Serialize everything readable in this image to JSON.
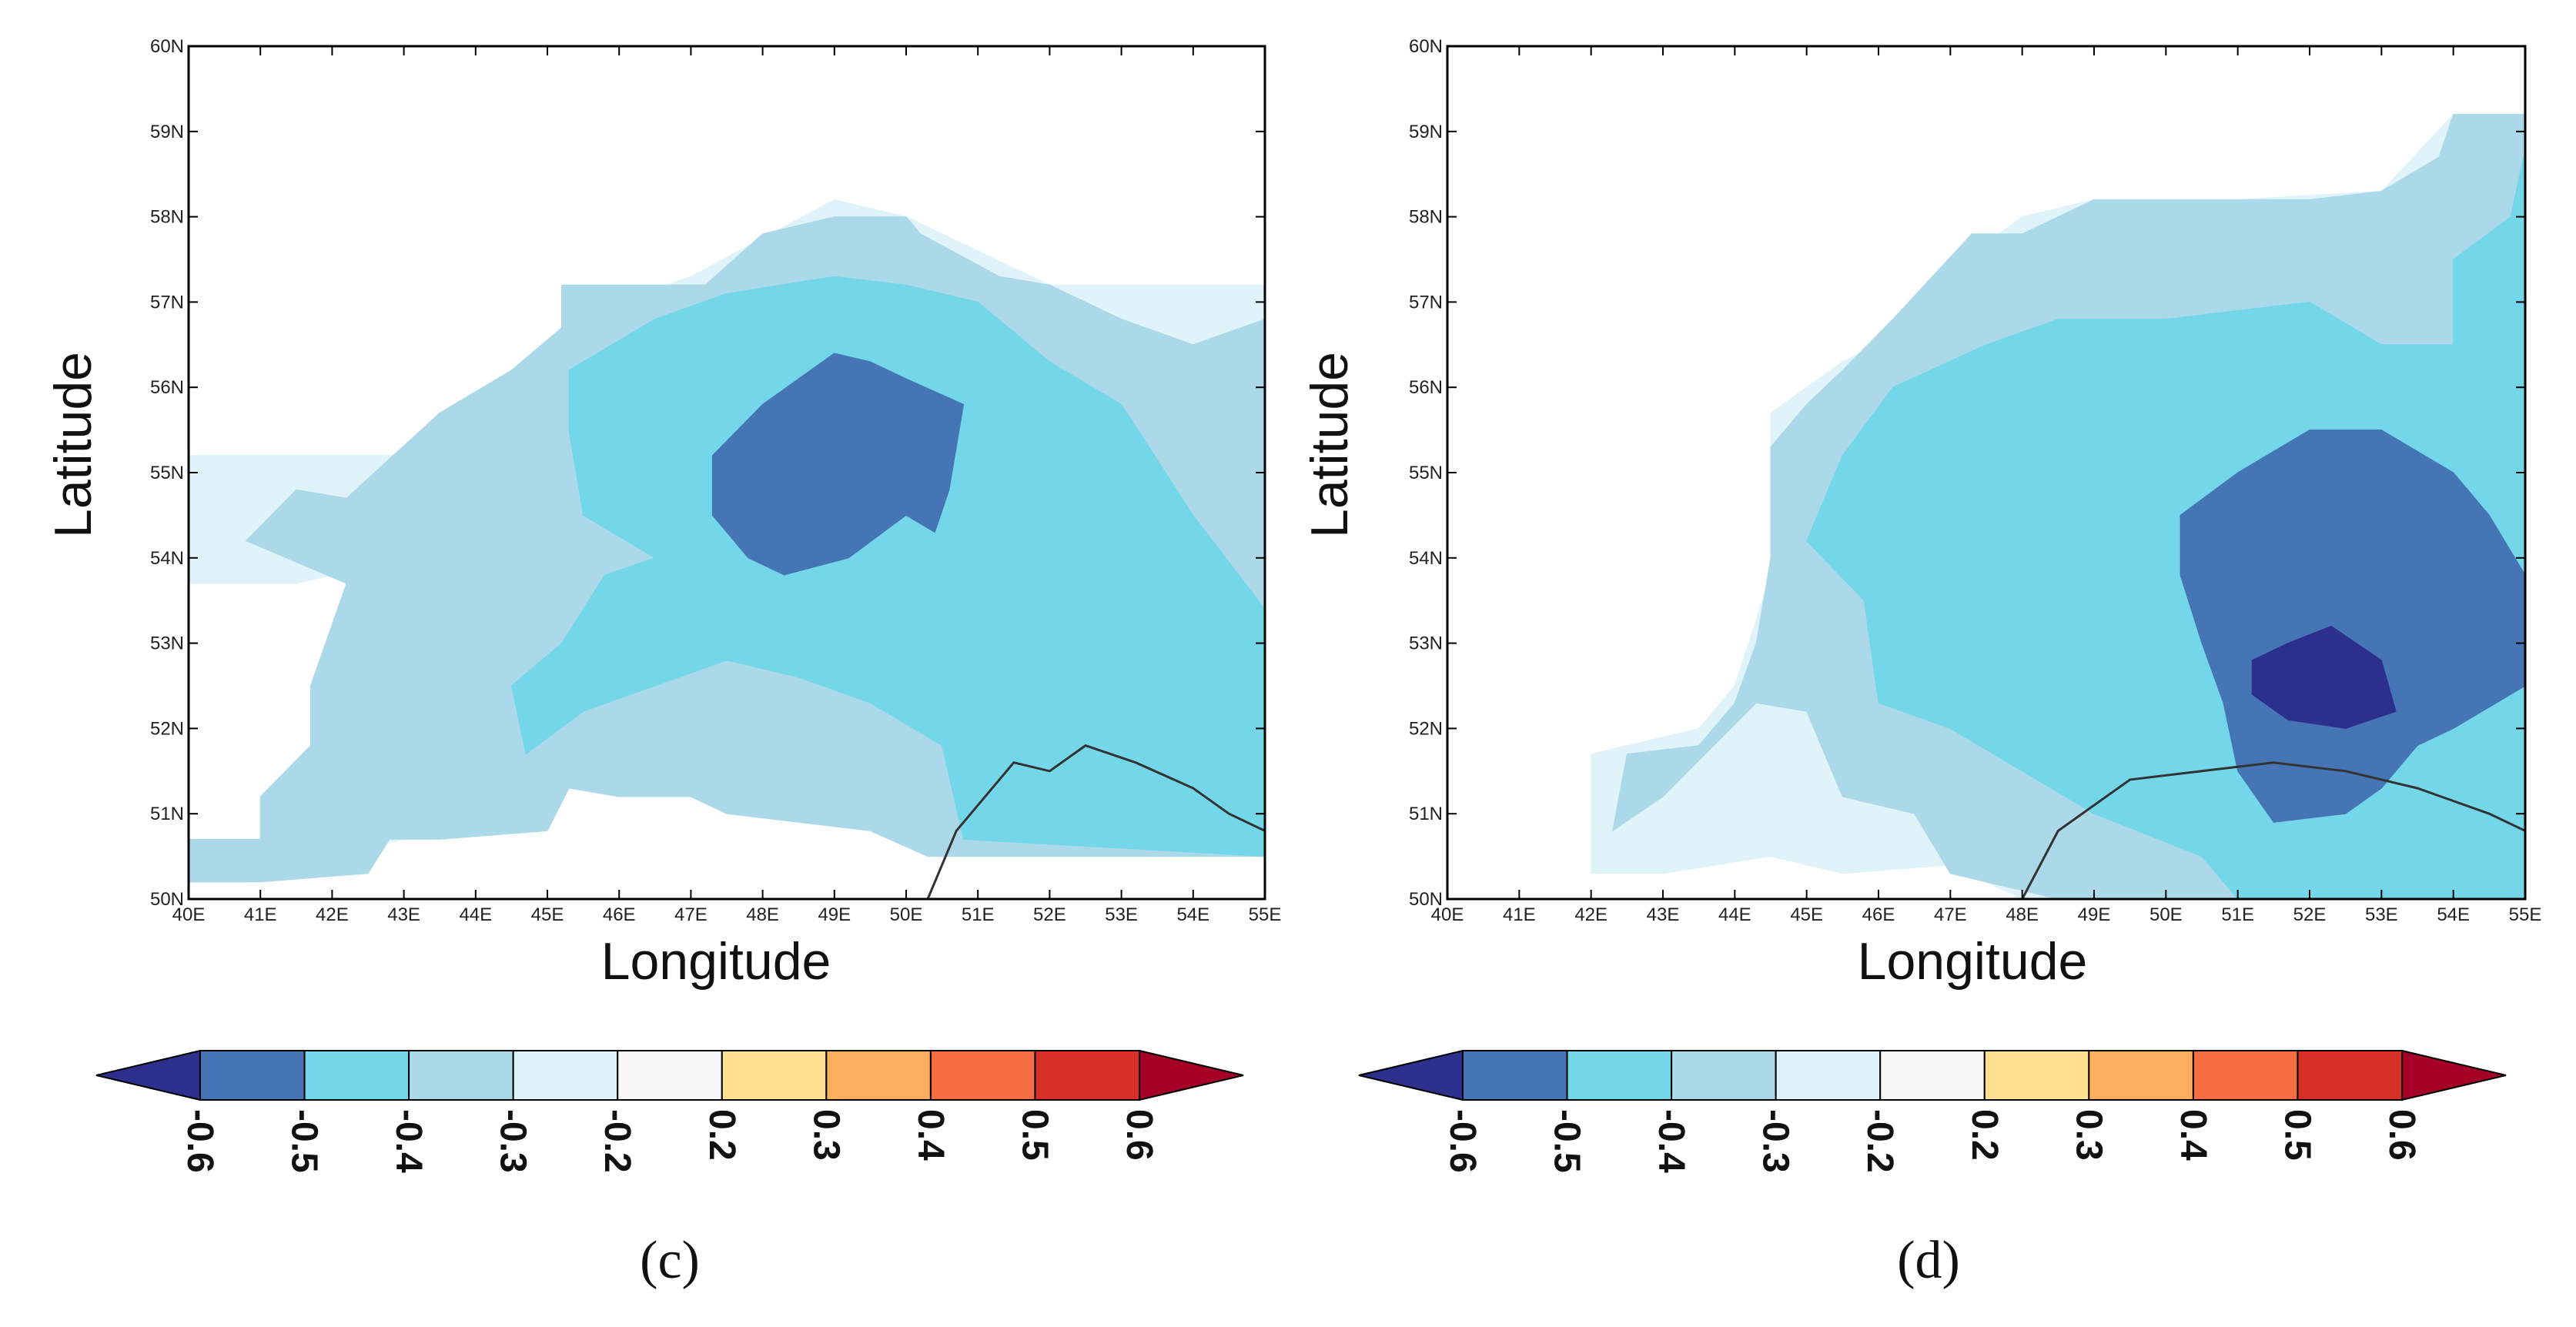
{
  "colors": {
    "lt_-0.6": "#2c2f8c",
    "-0.6_-0.5": "#4575b4",
    "-0.5_-0.4": "#74d7e9",
    "-0.4_-0.3": "#abd9e9",
    "-0.3_-0.2": "#e0f3f8",
    "-0.2_0.2": "#f7f7f7",
    "0.2_0.3": "#fee090",
    "0.3_0.4": "#fdae61",
    "0.4_0.5": "#f46d43",
    "0.5_0.6": "#d73027",
    "gt_0.6": "#a50026",
    "border": "#333333"
  },
  "chart_data": [
    {
      "type": "heatmap",
      "panel_label": "(c)",
      "xlabel": "Longitude",
      "ylabel": "Latitude",
      "xlim": [
        40,
        55
      ],
      "ylim": [
        50,
        60
      ],
      "xticks": [
        "40E",
        "41E",
        "42E",
        "43E",
        "44E",
        "45E",
        "46E",
        "47E",
        "48E",
        "49E",
        "50E",
        "51E",
        "52E",
        "53E",
        "54E",
        "55E"
      ],
      "yticks": [
        "50N",
        "51N",
        "52N",
        "53N",
        "54N",
        "55N",
        "56N",
        "57N",
        "58N",
        "59N",
        "60N"
      ],
      "colorbar": {
        "levels": [
          "-0.6",
          "-0.5",
          "-0.4",
          "-0.3",
          "-0.2",
          "0.2",
          "0.3",
          "0.4",
          "0.5",
          "0.6"
        ],
        "extend": "both"
      },
      "regions": [
        {
          "class": "-0.3_-0.2",
          "points": [
            [
              40,
              50.7
            ],
            [
              41,
              50.7
            ],
            [
              41.2,
              51.2
            ],
            [
              41.7,
              51.8
            ],
            [
              41.7,
              52.5
            ],
            [
              42.5,
              53.8
            ],
            [
              44.5,
              55.7
            ],
            [
              45.5,
              56.4
            ],
            [
              46,
              57
            ],
            [
              47,
              57.3
            ],
            [
              49,
              58.2
            ],
            [
              50,
              58
            ],
            [
              51,
              57.6
            ],
            [
              52,
              57.2
            ],
            [
              55,
              57.2
            ],
            [
              55,
              50.5
            ],
            [
              50.5,
              50.5
            ],
            [
              49,
              51
            ],
            [
              47,
              51.3
            ],
            [
              45,
              51.3
            ],
            [
              43,
              50.7
            ],
            [
              42,
              50.5
            ],
            [
              40.8,
              50.2
            ],
            [
              40,
              50.2
            ]
          ]
        },
        {
          "class": "-0.3_-0.2",
          "points": [
            [
              40,
              53.7
            ],
            [
              40,
              55.2
            ],
            [
              42,
              55.2
            ],
            [
              43,
              55.2
            ],
            [
              42,
              53.8
            ],
            [
              41.5,
              53.7
            ]
          ]
        },
        {
          "class": "-0.4_-0.3",
          "points": [
            [
              40,
              50.7
            ],
            [
              41,
              50.7
            ],
            [
              41,
              51.2
            ],
            [
              41.7,
              51.8
            ],
            [
              41.7,
              52.5
            ],
            [
              42.2,
              53.7
            ],
            [
              40.8,
              54.2
            ],
            [
              41.5,
              54.8
            ],
            [
              42.2,
              54.7
            ],
            [
              43.5,
              55.7
            ],
            [
              44.5,
              56.2
            ],
            [
              45.2,
              56.7
            ],
            [
              45.2,
              57.2
            ],
            [
              46,
              57.2
            ],
            [
              47.2,
              57.2
            ],
            [
              48,
              57.8
            ],
            [
              49,
              58
            ],
            [
              50,
              58
            ],
            [
              50.2,
              57.8
            ],
            [
              51.3,
              57.3
            ],
            [
              52,
              57.2
            ],
            [
              53,
              56.8
            ],
            [
              54,
              56.5
            ],
            [
              55,
              56.8
            ],
            [
              55,
              50.5
            ],
            [
              50.3,
              50.5
            ],
            [
              49.5,
              50.8
            ],
            [
              47.5,
              51
            ],
            [
              47,
              51.2
            ],
            [
              46,
              51.2
            ],
            [
              45.3,
              51.3
            ],
            [
              45,
              50.8
            ],
            [
              43.5,
              50.7
            ],
            [
              42.8,
              50.7
            ],
            [
              42.5,
              50.3
            ],
            [
              41,
              50.2
            ],
            [
              40,
              50.2
            ]
          ]
        },
        {
          "class": "-0.5_-0.4",
          "points": [
            [
              45.3,
              56.2
            ],
            [
              46.5,
              56.8
            ],
            [
              47.5,
              57.1
            ],
            [
              49,
              57.3
            ],
            [
              50,
              57.2
            ],
            [
              51,
              57
            ],
            [
              52,
              56.3
            ],
            [
              53,
              55.8
            ],
            [
              54,
              54.5
            ],
            [
              55,
              53.4
            ],
            [
              55,
              50.5
            ],
            [
              50.8,
              50.7
            ],
            [
              50.5,
              51.8
            ],
            [
              49.5,
              52.3
            ],
            [
              48.5,
              52.6
            ],
            [
              47.5,
              52.8
            ],
            [
              46.5,
              52.5
            ],
            [
              45.5,
              52.2
            ],
            [
              44.7,
              51.7
            ],
            [
              44.5,
              52.5
            ],
            [
              45.2,
              53
            ],
            [
              45.8,
              53.8
            ],
            [
              46.5,
              54
            ],
            [
              45.5,
              54.5
            ],
            [
              45.3,
              55.5
            ]
          ]
        },
        {
          "class": "-0.6_-0.5",
          "points": [
            [
              47.3,
              55.2
            ],
            [
              48,
              55.8
            ],
            [
              49,
              56.4
            ],
            [
              49.5,
              56.3
            ],
            [
              50,
              56.1
            ],
            [
              50.8,
              55.8
            ],
            [
              50.6,
              54.8
            ],
            [
              50.4,
              54.3
            ],
            [
              50,
              54.5
            ],
            [
              49.2,
              54
            ],
            [
              48.3,
              53.8
            ],
            [
              47.8,
              54
            ],
            [
              47.3,
              54.5
            ]
          ]
        }
      ],
      "border": [
        [
          50.3,
          50
        ],
        [
          50.7,
          50.8
        ],
        [
          51.5,
          51.6
        ],
        [
          52,
          51.5
        ],
        [
          52.5,
          51.8
        ],
        [
          53.2,
          51.6
        ],
        [
          54,
          51.3
        ],
        [
          54.5,
          51
        ],
        [
          55,
          50.8
        ]
      ]
    },
    {
      "type": "heatmap",
      "panel_label": "(d)",
      "xlabel": "Longitude",
      "ylabel": "Latitude",
      "xlim": [
        40,
        55
      ],
      "ylim": [
        50,
        60
      ],
      "xticks": [
        "40E",
        "41E",
        "42E",
        "43E",
        "44E",
        "45E",
        "46E",
        "47E",
        "48E",
        "49E",
        "50E",
        "51E",
        "52E",
        "53E",
        "54E",
        "55E"
      ],
      "yticks": [
        "50N",
        "51N",
        "52N",
        "53N",
        "54N",
        "55N",
        "56N",
        "57N",
        "58N",
        "59N",
        "60N"
      ],
      "colorbar": {
        "levels": [
          "-0.6",
          "-0.5",
          "-0.4",
          "-0.3",
          "-0.2",
          "0.2",
          "0.3",
          "0.4",
          "0.5",
          "0.6"
        ],
        "extend": "both"
      },
      "regions": [
        {
          "class": "-0.3_-0.2",
          "points": [
            [
              42,
              50.7
            ],
            [
              42,
              51.7
            ],
            [
              43.5,
              52
            ],
            [
              44,
              52.5
            ],
            [
              44.5,
              53.8
            ],
            [
              44.5,
              55.7
            ],
            [
              45.5,
              56.3
            ],
            [
              46.5,
              56.7
            ],
            [
              47.2,
              57.5
            ],
            [
              48,
              58
            ],
            [
              49,
              58.2
            ],
            [
              51,
              58.2
            ],
            [
              53,
              58.3
            ],
            [
              54,
              59.2
            ],
            [
              55,
              59.2
            ],
            [
              55,
              50
            ],
            [
              48,
              50
            ],
            [
              47,
              50.4
            ],
            [
              45.5,
              50.3
            ],
            [
              44.5,
              50.5
            ],
            [
              43,
              50.3
            ],
            [
              42,
              50.3
            ]
          ]
        },
        {
          "class": "-0.4_-0.3",
          "points": [
            [
              42.3,
              50.8
            ],
            [
              42.5,
              51.7
            ],
            [
              43.5,
              51.8
            ],
            [
              44,
              52.3
            ],
            [
              44.3,
              53
            ],
            [
              44.5,
              54
            ],
            [
              44.5,
              55.3
            ],
            [
              45,
              55.8
            ],
            [
              45.5,
              56.2
            ],
            [
              46.2,
              56.8
            ],
            [
              47.3,
              57.8
            ],
            [
              48,
              57.8
            ],
            [
              49,
              58.2
            ],
            [
              52,
              58.2
            ],
            [
              53,
              58.3
            ],
            [
              53.8,
              58.7
            ],
            [
              54,
              59.2
            ],
            [
              55,
              59.2
            ],
            [
              55,
              50
            ],
            [
              48.5,
              50
            ],
            [
              47,
              50.3
            ],
            [
              46.5,
              51
            ],
            [
              45.5,
              51.2
            ],
            [
              45,
              52.2
            ],
            [
              44.3,
              52.3
            ],
            [
              43,
              51.2
            ]
          ]
        },
        {
          "class": "-0.5_-0.4",
          "points": [
            [
              45.5,
              55.2
            ],
            [
              46.2,
              56
            ],
            [
              47.5,
              56.5
            ],
            [
              48.5,
              56.8
            ],
            [
              50,
              56.8
            ],
            [
              52,
              57
            ],
            [
              53,
              56.5
            ],
            [
              54,
              56.5
            ],
            [
              54,
              57.5
            ],
            [
              54.8,
              58
            ],
            [
              55,
              58.8
            ],
            [
              55,
              50
            ],
            [
              51,
              50
            ],
            [
              50.5,
              50.5
            ],
            [
              49,
              51
            ],
            [
              48,
              51.5
            ],
            [
              47,
              52
            ],
            [
              46,
              52.3
            ],
            [
              45.8,
              53.5
            ],
            [
              45,
              54.2
            ]
          ]
        },
        {
          "class": "-0.6_-0.5",
          "points": [
            [
              50.2,
              54.5
            ],
            [
              51,
              55
            ],
            [
              52,
              55.5
            ],
            [
              53,
              55.5
            ],
            [
              54,
              55
            ],
            [
              54.5,
              54.5
            ],
            [
              55,
              53.8
            ],
            [
              55,
              52.5
            ],
            [
              54,
              52
            ],
            [
              53.5,
              51.8
            ],
            [
              53,
              51.3
            ],
            [
              52.5,
              51
            ],
            [
              51.5,
              50.9
            ],
            [
              51,
              51.5
            ],
            [
              50.8,
              52.3
            ],
            [
              50.5,
              53
            ],
            [
              50.2,
              53.8
            ]
          ]
        },
        {
          "class": "lt_-0.6",
          "points": [
            [
              51.2,
              52.8
            ],
            [
              51.7,
              53
            ],
            [
              52.3,
              53.2
            ],
            [
              53,
              52.8
            ],
            [
              53.2,
              52.2
            ],
            [
              52.5,
              52
            ],
            [
              51.7,
              52.1
            ],
            [
              51.2,
              52.4
            ]
          ]
        }
      ],
      "border": [
        [
          48,
          50
        ],
        [
          48.5,
          50.8
        ],
        [
          49.5,
          51.4
        ],
        [
          50.5,
          51.5
        ],
        [
          51.5,
          51.6
        ],
        [
          52.5,
          51.5
        ],
        [
          53.5,
          51.3
        ],
        [
          54.5,
          51
        ],
        [
          55,
          50.8
        ]
      ]
    }
  ]
}
